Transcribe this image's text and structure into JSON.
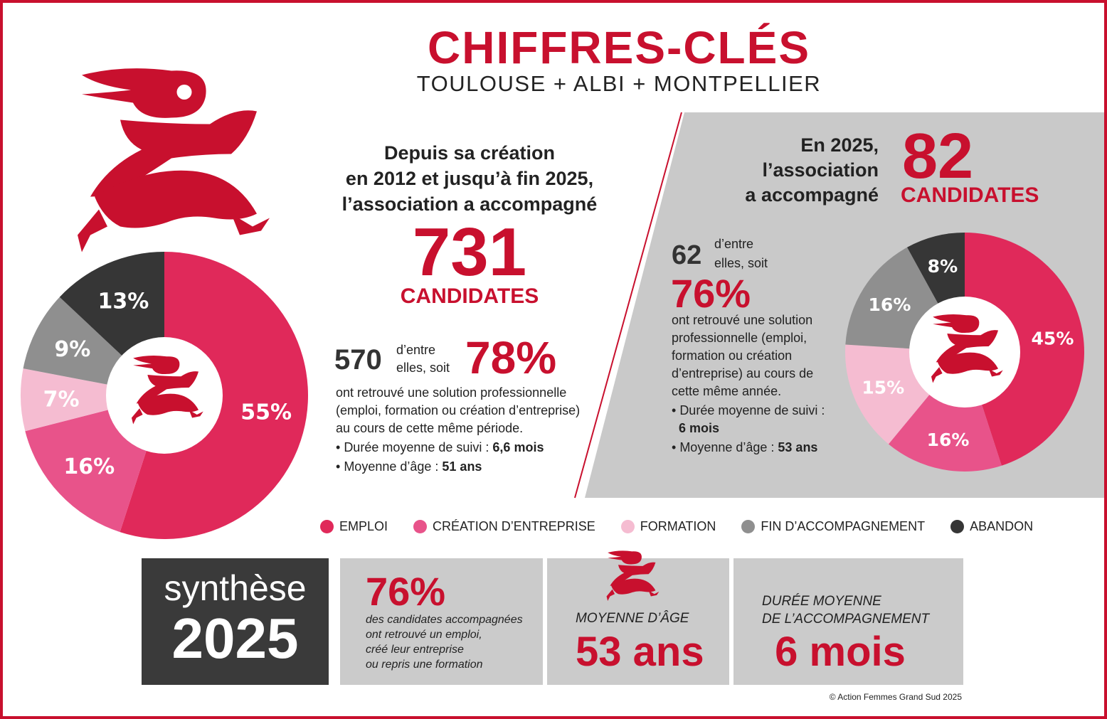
{
  "header": {
    "title": "CHIFFRES-CLÉS",
    "subtitle": "TOULOUSE + ALBI + MONTPELLIER"
  },
  "colors": {
    "brand": "#c8102e",
    "emploi": "#e0295a",
    "creation": "#e8538a",
    "formation": "#f5bcd1",
    "fin": "#8f8f8f",
    "abandon": "#363636"
  },
  "overall": {
    "intro": [
      "Depuis sa création",
      "en 2012 et jusqu’à fin 2025,",
      "l’association a accompagné"
    ],
    "count": "731",
    "count_label": "CANDIDATES",
    "sub_count": "570",
    "sub_text1": "d’entre",
    "sub_text2": "elles, soit",
    "percent": "78%",
    "desc": [
      "ont retrouvé une solution professionnelle",
      "(emploi, formation ou création d’entreprise)",
      "au cours de cette même période."
    ],
    "duration_label": "Durée moyenne de suivi : ",
    "duration_value": "6,6 mois",
    "age_label": "Moyenne d’âge : ",
    "age_value": "51 ans"
  },
  "year2025": {
    "intro": [
      "En 2025,",
      "l’association",
      "a accompagné"
    ],
    "count": "82",
    "count_label": "CANDIDATES",
    "sub_count": "62",
    "sub_text1": "d’entre",
    "sub_text2": "elles, soit",
    "percent": "76%",
    "desc": [
      "ont retrouvé une solution",
      "professionnelle (emploi,",
      "formation ou création",
      "d’entreprise) au cours de",
      "cette même année."
    ],
    "duration_label": "Durée moyenne de suivi :",
    "duration_value": "6 mois",
    "age_label": "Moyenne d’âge : ",
    "age_value": "53 ans"
  },
  "chart_data": [
    {
      "type": "pie",
      "donut": true,
      "categories": [
        "EMPLOI",
        "CRÉATION D’ENTREPRISE",
        "FORMATION",
        "FIN D’ACCOMPAGNEMENT",
        "ABANDON"
      ],
      "values": [
        55,
        16,
        7,
        9,
        13
      ],
      "labels": [
        "55%",
        "16%",
        "7%",
        "9%",
        "13%"
      ],
      "legend": "bottom"
    },
    {
      "type": "pie",
      "donut": true,
      "categories": [
        "EMPLOI",
        "CRÉATION D’ENTREPRISE",
        "FORMATION",
        "FIN D’ACCOMPAGNEMENT",
        "ABANDON"
      ],
      "values": [
        45,
        16,
        15,
        16,
        8
      ],
      "labels": [
        "45%",
        "16%",
        "15%",
        "16%",
        "8%"
      ],
      "legend": "bottom"
    }
  ],
  "legend": [
    {
      "label": "EMPLOI",
      "color": "#e0295a"
    },
    {
      "label": "CRÉATION D’ENTREPRISE",
      "color": "#e8538a"
    },
    {
      "label": "FORMATION",
      "color": "#f5bcd1"
    },
    {
      "label": "FIN D’ACCOMPAGNEMENT",
      "color": "#8f8f8f"
    },
    {
      "label": "ABANDON",
      "color": "#363636"
    }
  ],
  "synthese": {
    "word": "synthèse",
    "year": "2025",
    "percent": "76%",
    "percent_desc": [
      "des candidates accompagnées",
      "ont retrouvé un emploi,",
      "créé leur entreprise",
      "ou repris une formation"
    ],
    "age_label": "MOYENNE D’ÂGE",
    "age_value": "53 ans",
    "duration_label": [
      "DURÉE MOYENNE",
      "DE L’ACCOMPAGNEMENT"
    ],
    "duration_value": "6 mois"
  },
  "copyright": "© Action Femmes Grand Sud 2025",
  "icons": {
    "logo": "running-woman-logo"
  }
}
